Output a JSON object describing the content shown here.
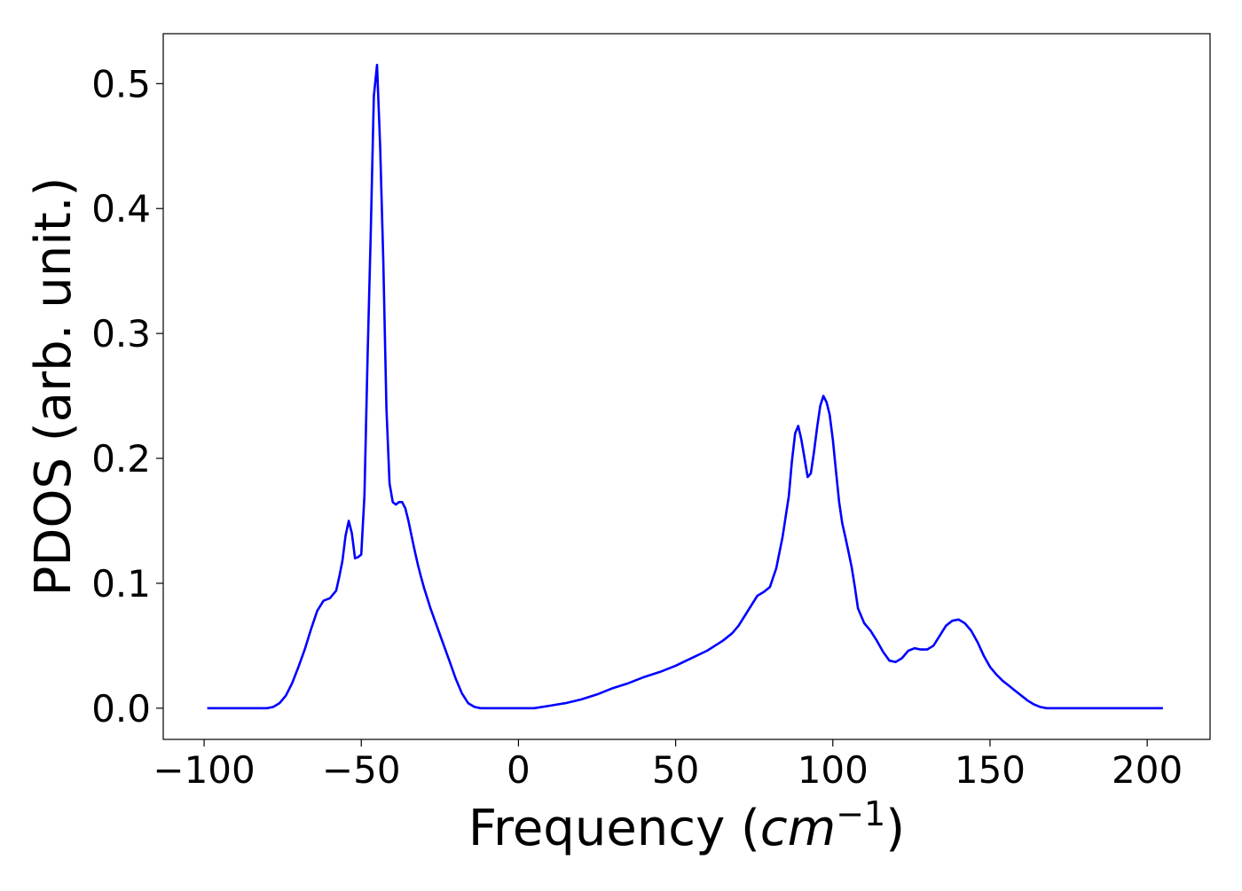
{
  "chart_data": {
    "type": "line",
    "title": "",
    "xlabel": "Frequency",
    "xlabel_unit_base": "cm",
    "xlabel_unit_exp": "−1",
    "ylabel": "PDOS (arb. unit.)",
    "xlim": [
      -113,
      220
    ],
    "ylim": [
      -0.025,
      0.54
    ],
    "xticks": [
      -100,
      -50,
      0,
      50,
      100,
      150,
      200
    ],
    "xtick_labels": [
      "−100",
      "−50",
      "0",
      "50",
      "100",
      "150",
      "200"
    ],
    "yticks": [
      0.0,
      0.1,
      0.2,
      0.3,
      0.4,
      0.5
    ],
    "ytick_labels": [
      "0.0",
      "0.1",
      "0.2",
      "0.3",
      "0.4",
      "0.5"
    ],
    "grid": false,
    "legend": "none",
    "series": [
      {
        "color": "#0000ff",
        "x": [
          -99,
          -90,
          -80,
          -78,
          -76,
          -74,
          -72,
          -70,
          -68,
          -66,
          -64,
          -62,
          -60,
          -58,
          -57,
          -56,
          -55,
          -54,
          -53,
          -52,
          -51,
          -50,
          -49,
          -48,
          -47,
          -46,
          -45,
          -44,
          -43,
          -42,
          -41,
          -40,
          -39,
          -38,
          -37,
          -36,
          -35,
          -34,
          -33,
          -32,
          -31,
          -30,
          -29,
          -28,
          -26,
          -24,
          -22,
          -20,
          -18,
          -16,
          -14,
          -12,
          -10,
          -8,
          -6,
          -4,
          0,
          5,
          10,
          15,
          20,
          25,
          30,
          35,
          40,
          45,
          50,
          55,
          60,
          65,
          68,
          70,
          72,
          74,
          76,
          78,
          80,
          82,
          84,
          86,
          87,
          88,
          89,
          90,
          91,
          92,
          93,
          94,
          95,
          96,
          97,
          98,
          99,
          100,
          101,
          102,
          103,
          104,
          105,
          106,
          107,
          108,
          110,
          112,
          114,
          116,
          118,
          120,
          122,
          124,
          126,
          128,
          130,
          132,
          134,
          136,
          138,
          140,
          142,
          144,
          146,
          148,
          150,
          152,
          154,
          156,
          158,
          160,
          162,
          164,
          166,
          168,
          170,
          172,
          174,
          176,
          178,
          180,
          182,
          184,
          186,
          190,
          200,
          205
        ],
        "y": [
          0.0,
          0.0,
          0.0,
          0.001,
          0.004,
          0.01,
          0.02,
          0.033,
          0.047,
          0.063,
          0.078,
          0.086,
          0.088,
          0.094,
          0.105,
          0.118,
          0.138,
          0.15,
          0.14,
          0.12,
          0.121,
          0.123,
          0.17,
          0.28,
          0.38,
          0.49,
          0.515,
          0.45,
          0.36,
          0.24,
          0.18,
          0.165,
          0.163,
          0.165,
          0.165,
          0.16,
          0.15,
          0.138,
          0.126,
          0.115,
          0.105,
          0.096,
          0.088,
          0.08,
          0.066,
          0.052,
          0.038,
          0.024,
          0.012,
          0.004,
          0.001,
          0.0,
          0.0,
          0.0,
          0.0,
          0.0,
          0.0,
          0.0,
          0.002,
          0.004,
          0.007,
          0.011,
          0.016,
          0.02,
          0.025,
          0.029,
          0.034,
          0.04,
          0.046,
          0.054,
          0.06,
          0.066,
          0.074,
          0.082,
          0.09,
          0.093,
          0.097,
          0.112,
          0.137,
          0.17,
          0.198,
          0.22,
          0.226,
          0.215,
          0.2,
          0.185,
          0.188,
          0.205,
          0.225,
          0.242,
          0.25,
          0.245,
          0.235,
          0.215,
          0.19,
          0.165,
          0.148,
          0.137,
          0.125,
          0.113,
          0.097,
          0.08,
          0.068,
          0.062,
          0.054,
          0.045,
          0.038,
          0.037,
          0.04,
          0.046,
          0.048,
          0.047,
          0.047,
          0.05,
          0.058,
          0.066,
          0.07,
          0.071,
          0.068,
          0.062,
          0.053,
          0.042,
          0.033,
          0.027,
          0.022,
          0.018,
          0.014,
          0.01,
          0.006,
          0.003,
          0.001,
          0.0,
          0.0,
          0.0,
          0.0,
          0.0,
          0.0,
          0.0,
          0.0,
          0.0,
          0.0,
          0.0,
          0.0,
          0.0
        ]
      }
    ]
  }
}
